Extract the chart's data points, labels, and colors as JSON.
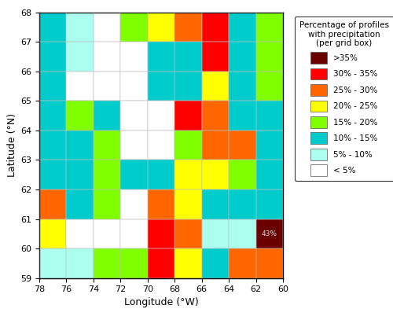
{
  "xlabel": "Longitude (°W)",
  "ylabel": "Latitude (°N)",
  "legend_labels": [
    ">35%",
    "30% - 35%",
    "25% - 30%",
    "20% - 25%",
    "15% - 20%",
    "10% - 15%",
    "5% - 10%",
    "< 5%"
  ],
  "legend_colors": [
    "#6b0000",
    "#ff0000",
    "#ff6600",
    "#ffff00",
    "#80ff00",
    "#00cccc",
    "#aaffee",
    "#ffffff"
  ],
  "legend_title": "Percentage of profiles\nwith precipitation\n(per grid box)",
  "annotation_text": "43%",
  "annotation_lon": -61.0,
  "annotation_lat": 60.5,
  "color_map": {
    "0": "#6b0000",
    "1": "#ff0000",
    "2": "#ff6600",
    "3": "#ffff00",
    "4": "#80ff00",
    "5": "#00cccc",
    "6": "#aaffee",
    "7": "#ffffff"
  },
  "grid_indices": [
    [
      5,
      6,
      7,
      4,
      3,
      2,
      1,
      5,
      4
    ],
    [
      5,
      6,
      7,
      7,
      5,
      5,
      1,
      5,
      4
    ],
    [
      5,
      7,
      7,
      7,
      5,
      5,
      3,
      5,
      4
    ],
    [
      5,
      4,
      5,
      7,
      7,
      1,
      2,
      5,
      5
    ],
    [
      5,
      5,
      4,
      7,
      7,
      4,
      2,
      2,
      5
    ],
    [
      5,
      5,
      4,
      5,
      5,
      3,
      3,
      4,
      5
    ],
    [
      2,
      5,
      4,
      7,
      2,
      3,
      5,
      5,
      5
    ],
    [
      3,
      7,
      7,
      7,
      1,
      2,
      6,
      6,
      0
    ],
    [
      6,
      6,
      4,
      4,
      1,
      3,
      5,
      2,
      2
    ]
  ]
}
